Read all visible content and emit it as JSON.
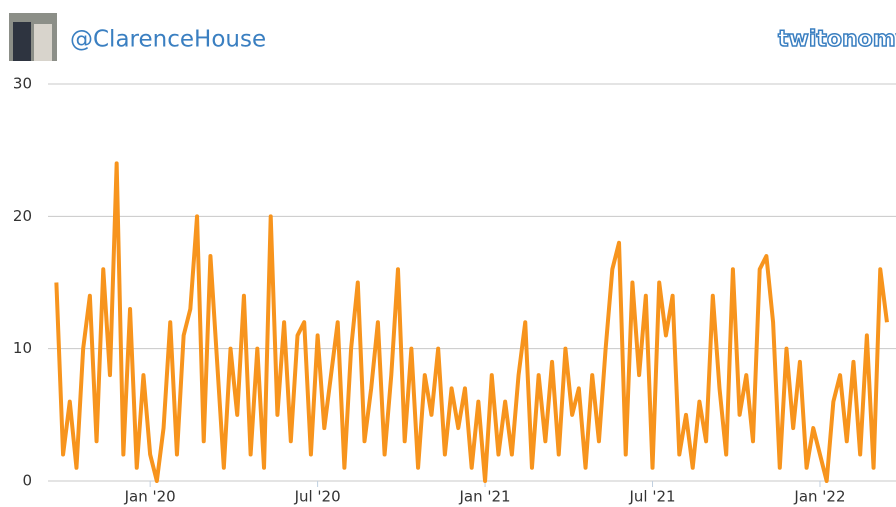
{
  "header": {
    "handle": "@ClarenceHouse",
    "logo": "twitonomy"
  },
  "chart_data": {
    "type": "line",
    "x": [
      2019.72,
      2019.74,
      2019.76,
      2019.78,
      2019.8,
      2019.82,
      2019.84,
      2019.86,
      2019.88,
      2019.9,
      2019.92,
      2019.94,
      2019.96,
      2019.98,
      2020.0,
      2020.02,
      2020.04,
      2020.06,
      2020.08,
      2020.1,
      2020.12,
      2020.14,
      2020.16,
      2020.18,
      2020.2,
      2020.22,
      2020.24,
      2020.26,
      2020.28,
      2020.3,
      2020.32,
      2020.34,
      2020.36,
      2020.38,
      2020.4,
      2020.42,
      2020.44,
      2020.46,
      2020.48,
      2020.5,
      2020.52,
      2020.54,
      2020.56,
      2020.58,
      2020.6,
      2020.62,
      2020.64,
      2020.66,
      2020.68,
      2020.7,
      2020.72,
      2020.74,
      2020.76,
      2020.78,
      2020.8,
      2020.82,
      2020.84,
      2020.86,
      2020.88,
      2020.9,
      2020.92,
      2020.94,
      2020.96,
      2020.98,
      2021.0,
      2021.02,
      2021.04,
      2021.06,
      2021.08,
      2021.1,
      2021.12,
      2021.14,
      2021.16,
      2021.18,
      2021.2,
      2021.22,
      2021.24,
      2021.26,
      2021.28,
      2021.3,
      2021.32,
      2021.34,
      2021.36,
      2021.38,
      2021.4,
      2021.42,
      2021.44,
      2021.46,
      2021.48,
      2021.5,
      2021.52,
      2021.54,
      2021.56,
      2021.58,
      2021.6,
      2021.62,
      2021.64,
      2021.66,
      2021.68,
      2021.7,
      2021.72,
      2021.74,
      2021.76,
      2021.78,
      2021.8,
      2021.82,
      2021.84,
      2021.86,
      2021.88,
      2021.9,
      2021.92,
      2021.94,
      2021.96,
      2021.98,
      2022.0,
      2022.02,
      2022.04,
      2022.06,
      2022.08,
      2022.1,
      2022.12,
      2022.14,
      2022.16,
      2022.18,
      2022.2
    ],
    "series": [
      {
        "color": "#f7941d",
        "values": [
          15,
          2,
          6,
          1,
          10,
          14,
          3,
          16,
          8,
          24,
          2,
          13,
          1,
          8,
          2,
          0,
          4,
          12,
          2,
          11,
          13,
          20,
          3,
          17,
          9,
          1,
          10,
          5,
          14,
          2,
          10,
          1,
          20,
          5,
          12,
          3,
          11,
          12,
          2,
          11,
          4,
          8,
          12,
          1,
          10,
          15,
          3,
          7,
          12,
          2,
          8,
          16,
          3,
          10,
          1,
          8,
          5,
          10,
          2,
          7,
          4,
          7,
          1,
          6,
          0,
          8,
          2,
          6,
          2,
          8,
          12,
          1,
          8,
          3,
          9,
          2,
          10,
          5,
          7,
          1,
          8,
          3,
          10,
          16,
          18,
          2,
          15,
          8,
          14,
          1,
          15,
          11,
          14,
          2,
          5,
          1,
          6,
          3,
          14,
          7,
          2,
          16,
          5,
          8,
          3,
          16,
          17,
          12,
          1,
          10,
          4,
          9,
          1,
          4,
          2,
          0,
          6,
          8,
          3,
          9,
          2,
          11,
          1,
          16,
          12
        ]
      }
    ],
    "xlim": [
      2019.695,
      2022.227
    ],
    "xticks": [
      {
        "value": 2020,
        "label": "Jan '20"
      },
      {
        "value": 2020.5,
        "label": "Jul '20"
      },
      {
        "value": 2021,
        "label": "Jan '21"
      },
      {
        "value": 2021.5,
        "label": "Jul '21"
      },
      {
        "value": 2022,
        "label": "Jan '22"
      }
    ],
    "ylim": [
      0,
      30
    ],
    "yticks": [
      0,
      10,
      20,
      30
    ],
    "grid": true
  }
}
